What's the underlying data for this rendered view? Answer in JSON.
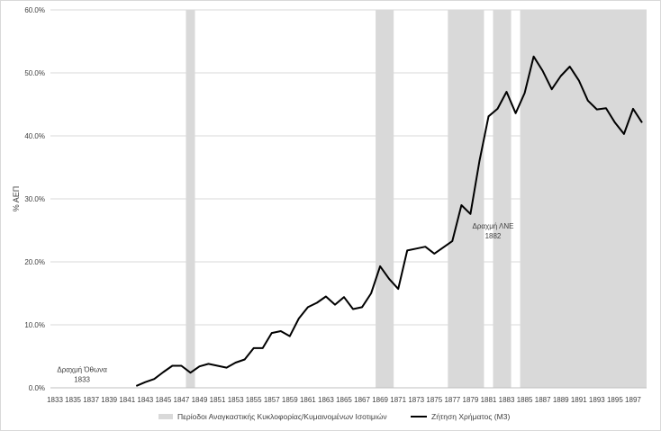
{
  "chart_data": {
    "type": "line",
    "title": "",
    "xlabel": "",
    "ylabel": "% ΑΕΠ",
    "ylim": [
      0,
      60
    ],
    "xlim": [
      1833,
      1898
    ],
    "y_ticks": [
      "0.0%",
      "10.0%",
      "20.0%",
      "30.0%",
      "40.0%",
      "50.0%",
      "60.0%"
    ],
    "x_ticks": [
      "1833",
      "1835",
      "1837",
      "1839",
      "1841",
      "1843",
      "1845",
      "1847",
      "1849",
      "1851",
      "1853",
      "1855",
      "1857",
      "1859",
      "1861",
      "1863",
      "1865",
      "1867",
      "1869",
      "1871",
      "1873",
      "1875",
      "1877",
      "1879",
      "1881",
      "1883",
      "1885",
      "1887",
      "1889",
      "1891",
      "1893",
      "1895",
      "1897"
    ],
    "grid": "horizontal",
    "legend_position": "bottom",
    "legend": {
      "shaded_label": "Περίοδοι Αναγκαστικής Κυκλοφορίας/Κυμαινομένων Ισοτιμιών",
      "line_label": "Ζήτηση Χρήματος (Μ3)"
    },
    "shaded_periods": [
      [
        1848,
        1848
      ],
      [
        1869,
        1870
      ],
      [
        1877,
        1880
      ],
      [
        1882,
        1883
      ],
      [
        1885,
        1898
      ]
    ],
    "series": [
      {
        "name": "Ζήτηση Χρήματος (Μ3)",
        "color": "#000000",
        "x": [
          1842,
          1843,
          1844,
          1845,
          1846,
          1847,
          1848,
          1849,
          1850,
          1851,
          1852,
          1853,
          1854,
          1855,
          1856,
          1857,
          1858,
          1859,
          1860,
          1861,
          1862,
          1863,
          1864,
          1865,
          1866,
          1867,
          1868,
          1869,
          1870,
          1871,
          1872,
          1873,
          1874,
          1875,
          1876,
          1877,
          1878,
          1879,
          1880,
          1881,
          1882,
          1883,
          1884,
          1885,
          1886,
          1887,
          1888,
          1889,
          1890,
          1891,
          1892,
          1893,
          1894,
          1895,
          1896,
          1897,
          1898
        ],
        "y": [
          0.3,
          0.9,
          1.4,
          2.5,
          3.5,
          3.5,
          2.4,
          3.4,
          3.8,
          3.5,
          3.2,
          4.0,
          4.5,
          6.3,
          6.3,
          8.7,
          9.0,
          8.2,
          11.0,
          12.8,
          13.5,
          14.5,
          13.2,
          14.4,
          12.5,
          12.8,
          15.0,
          19.3,
          17.3,
          15.7,
          21.8,
          22.1,
          22.4,
          21.3,
          22.3,
          23.3,
          29.0,
          27.6,
          36.0,
          43.1,
          44.3,
          47.0,
          43.6,
          46.8,
          52.6,
          50.3,
          47.4,
          49.5,
          51.0,
          48.8,
          45.6,
          44.2,
          44.4,
          42.1,
          40.3,
          44.3,
          42.1
        ]
      }
    ],
    "annotations": [
      {
        "lines": [
          "Δραχμή Όθωνα",
          "1833"
        ],
        "x": 1836,
        "y": 2.5
      },
      {
        "lines": [
          "Δραχμή ΛΝΕ",
          "1882"
        ],
        "x": 1881.5,
        "y": 25.3
      }
    ]
  }
}
